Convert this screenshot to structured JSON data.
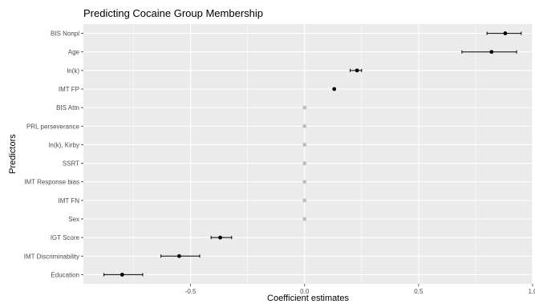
{
  "chart_data": {
    "type": "scatter",
    "title": "Predicting Cocaine Group Membership",
    "xlabel": "Coefficient estimates",
    "ylabel": "Predictors",
    "xlim": [
      -0.97,
      1.0
    ],
    "x_ticks": [
      {
        "value": -0.5,
        "label": "-0.5"
      },
      {
        "value": 0.0,
        "label": "0.0"
      },
      {
        "value": 0.5,
        "label": "0.5"
      },
      {
        "value": 1.0,
        "label": "1.0"
      }
    ],
    "grid": true,
    "background": "#ebebeb",
    "predictors": [
      {
        "name": "BIS Nonpl",
        "estimate": 0.88,
        "lower": 0.8,
        "upper": 0.95,
        "significant": true
      },
      {
        "name": "Age",
        "estimate": 0.82,
        "lower": 0.69,
        "upper": 0.93,
        "significant": true
      },
      {
        "name": "ln(k)",
        "estimate": 0.23,
        "lower": 0.2,
        "upper": 0.25,
        "significant": true
      },
      {
        "name": "IMT FP",
        "estimate": 0.13,
        "lower": 0.13,
        "upper": 0.13,
        "significant": true
      },
      {
        "name": "BIS Attn",
        "estimate": 0.0,
        "lower": 0.0,
        "upper": 0.0,
        "significant": false
      },
      {
        "name": "PRL perseverance",
        "estimate": 0.0,
        "lower": 0.0,
        "upper": 0.0,
        "significant": false
      },
      {
        "name": "ln(k), Kirby",
        "estimate": 0.0,
        "lower": 0.0,
        "upper": 0.0,
        "significant": false
      },
      {
        "name": "SSRT",
        "estimate": 0.0,
        "lower": 0.0,
        "upper": 0.0,
        "significant": false
      },
      {
        "name": "IMT Response bias",
        "estimate": 0.0,
        "lower": 0.0,
        "upper": 0.0,
        "significant": false
      },
      {
        "name": "IMT FN",
        "estimate": 0.0,
        "lower": 0.0,
        "upper": 0.0,
        "significant": false
      },
      {
        "name": "Sex",
        "estimate": 0.0,
        "lower": 0.0,
        "upper": 0.0,
        "significant": false
      },
      {
        "name": "IGT Score",
        "estimate": -0.37,
        "lower": -0.41,
        "upper": -0.32,
        "significant": true
      },
      {
        "name": "IMT Discriminability",
        "estimate": -0.55,
        "lower": -0.63,
        "upper": -0.46,
        "significant": true
      },
      {
        "name": "Education",
        "estimate": -0.8,
        "lower": -0.88,
        "upper": -0.71,
        "significant": true
      }
    ],
    "colors": {
      "significant": "#000000",
      "nonsignificant": "#bdbdbd",
      "gridline": "#ffffff",
      "panel": "#ebebeb"
    }
  }
}
